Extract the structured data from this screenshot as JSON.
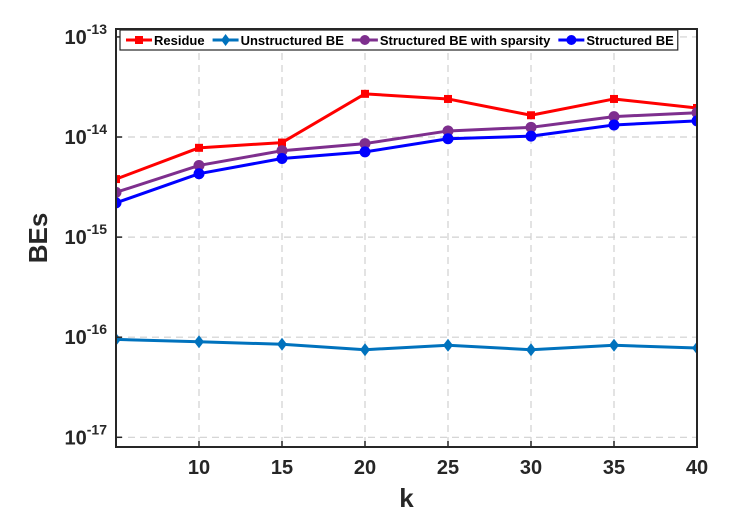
{
  "chart_data": {
    "type": "line",
    "title": "",
    "xlabel": "k",
    "ylabel": "BEs",
    "x": [
      5,
      10,
      15,
      20,
      25,
      30,
      35,
      40
    ],
    "xlim": [
      5,
      40
    ],
    "xticks": [
      10,
      15,
      20,
      25,
      30,
      35,
      40
    ],
    "y_scale": "log",
    "ylim": [
      8e-18,
      1.2e-13
    ],
    "yticks": [
      {
        "base": "10",
        "exp": "-17"
      },
      {
        "base": "10",
        "exp": "-16"
      },
      {
        "base": "10",
        "exp": "-15"
      },
      {
        "base": "10",
        "exp": "-14"
      },
      {
        "base": "10",
        "exp": "-13"
      }
    ],
    "grid": true,
    "legend_position": "top, horizontal",
    "series": [
      {
        "name": "Residue",
        "color": "#ff0000",
        "marker": "square",
        "values": [
          3.8e-15,
          7.8e-15,
          8.8e-15,
          2.7e-14,
          2.4e-14,
          1.65e-14,
          2.4e-14,
          1.95e-14
        ]
      },
      {
        "name": "Unstructured BE",
        "color": "#0072bd",
        "marker": "diamond",
        "values": [
          9.5e-17,
          9e-17,
          8.5e-17,
          7.5e-17,
          8.3e-17,
          7.5e-17,
          8.3e-17,
          7.8e-17
        ]
      },
      {
        "name": "Structured BE with sparsity",
        "color": "#7e2f8e",
        "marker": "circle",
        "values": [
          2.8e-15,
          5.2e-15,
          7.3e-15,
          8.6e-15,
          1.15e-14,
          1.25e-14,
          1.6e-14,
          1.75e-14
        ]
      },
      {
        "name": "Structured BE",
        "color": "#0000ff",
        "marker": "circle",
        "values": [
          2.2e-15,
          4.3e-15,
          6.1e-15,
          7.1e-15,
          9.6e-15,
          1.02e-14,
          1.32e-14,
          1.45e-14
        ]
      }
    ]
  }
}
